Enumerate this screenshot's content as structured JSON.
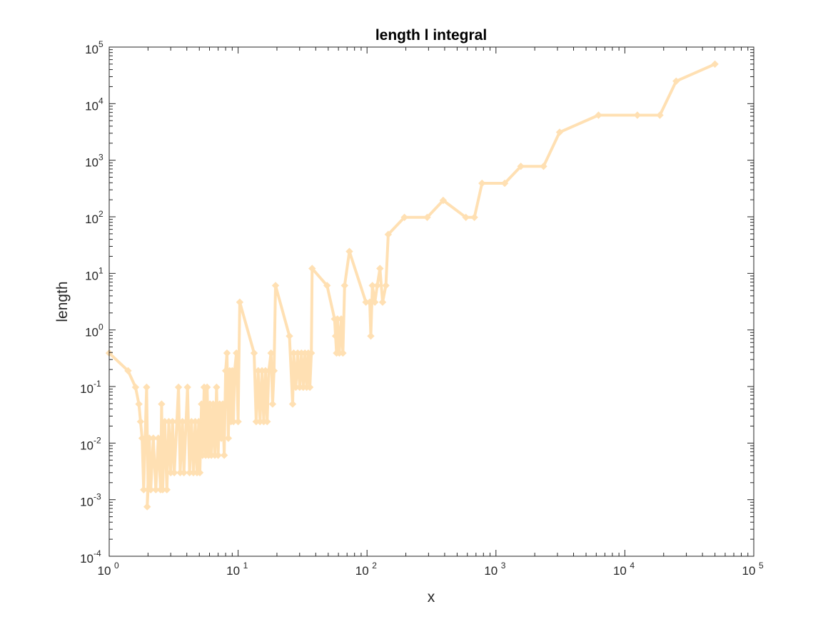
{
  "chart_data": {
    "type": "line",
    "title": "length l integral",
    "xlabel": "x",
    "ylabel": "length",
    "xscale": "log",
    "yscale": "log",
    "xlim": [
      1,
      100000
    ],
    "ylim": [
      0.0001,
      100000
    ],
    "grid": false,
    "x_ticks": [
      {
        "base": "10",
        "exp": "0"
      },
      {
        "base": "10",
        "exp": "1"
      },
      {
        "base": "10",
        "exp": "2"
      },
      {
        "base": "10",
        "exp": "3"
      },
      {
        "base": "10",
        "exp": "4"
      },
      {
        "base": "10",
        "exp": "5"
      }
    ],
    "y_ticks": [
      {
        "base": "10",
        "exp": "-4"
      },
      {
        "base": "10",
        "exp": "-3"
      },
      {
        "base": "10",
        "exp": "-2"
      },
      {
        "base": "10",
        "exp": "-1"
      },
      {
        "base": "10",
        "exp": "0"
      },
      {
        "base": "10",
        "exp": "1"
      },
      {
        "base": "10",
        "exp": "2"
      },
      {
        "base": "10",
        "exp": "3"
      },
      {
        "base": "10",
        "exp": "4"
      },
      {
        "base": "10",
        "exp": "5"
      }
    ],
    "series": [
      {
        "color": "#FFE0B3",
        "marker": "diamond",
        "points": [
          [
            1.0,
            0.39
          ],
          [
            1.4,
            0.19
          ],
          [
            1.6,
            0.097
          ],
          [
            1.7,
            0.049
          ],
          [
            1.75,
            0.024
          ],
          [
            1.8,
            0.0122
          ],
          [
            1.85,
            0.0015
          ],
          [
            1.9,
            0.0122
          ],
          [
            1.95,
            0.097
          ],
          [
            2.0,
            0.0015
          ],
          [
            1.97,
            0.00075
          ],
          [
            2.05,
            0.0122
          ],
          [
            2.1,
            0.0015
          ],
          [
            2.2,
            0.0122
          ],
          [
            2.3,
            0.0015
          ],
          [
            2.4,
            0.0122
          ],
          [
            2.5,
            0.0015
          ],
          [
            2.55,
            0.049
          ],
          [
            2.6,
            0.0015
          ],
          [
            2.7,
            0.024
          ],
          [
            2.8,
            0.0015
          ],
          [
            2.9,
            0.024
          ],
          [
            3.0,
            0.003
          ],
          [
            3.1,
            0.024
          ],
          [
            3.2,
            0.003
          ],
          [
            3.35,
            0.024
          ],
          [
            3.45,
            0.097
          ],
          [
            3.55,
            0.003
          ],
          [
            3.7,
            0.024
          ],
          [
            3.8,
            0.003
          ],
          [
            3.95,
            0.024
          ],
          [
            4.05,
            0.097
          ],
          [
            4.2,
            0.003
          ],
          [
            4.35,
            0.024
          ],
          [
            4.5,
            0.003
          ],
          [
            4.65,
            0.024
          ],
          [
            4.8,
            0.003
          ],
          [
            4.95,
            0.024
          ],
          [
            5.05,
            0.003
          ],
          [
            5.2,
            0.049
          ],
          [
            5.3,
            0.0061
          ],
          [
            5.45,
            0.097
          ],
          [
            5.6,
            0.0061
          ],
          [
            5.75,
            0.097
          ],
          [
            5.9,
            0.0061
          ],
          [
            6.05,
            0.049
          ],
          [
            6.2,
            0.0061
          ],
          [
            6.4,
            0.049
          ],
          [
            6.6,
            0.0061
          ],
          [
            6.8,
            0.097
          ],
          [
            7.0,
            0.0061
          ],
          [
            7.2,
            0.049
          ],
          [
            7.4,
            0.0122
          ],
          [
            7.6,
            0.049
          ],
          [
            7.8,
            0.0061
          ],
          [
            8.0,
            0.19
          ],
          [
            8.2,
            0.39
          ],
          [
            8.4,
            0.0122
          ],
          [
            8.6,
            0.19
          ],
          [
            8.8,
            0.024
          ],
          [
            9.0,
            0.19
          ],
          [
            9.2,
            0.024
          ],
          [
            9.4,
            0.19
          ],
          [
            9.7,
            0.39
          ],
          [
            10.0,
            0.024
          ],
          [
            10.3,
            3.1
          ],
          [
            13.3,
            0.39
          ],
          [
            13.8,
            0.024
          ],
          [
            14.3,
            0.19
          ],
          [
            14.8,
            0.024
          ],
          [
            15.3,
            0.19
          ],
          [
            15.8,
            0.024
          ],
          [
            16.3,
            0.19
          ],
          [
            16.8,
            0.024
          ],
          [
            17.3,
            0.19
          ],
          [
            18.0,
            0.39
          ],
          [
            18.5,
            0.049
          ],
          [
            19.0,
            0.19
          ],
          [
            19.5,
            6.1
          ],
          [
            25.0,
            0.78
          ],
          [
            26.5,
            0.049
          ],
          [
            27.0,
            0.39
          ],
          [
            28.0,
            0.097
          ],
          [
            29.0,
            0.39
          ],
          [
            30.0,
            0.097
          ],
          [
            31.0,
            0.39
          ],
          [
            32.0,
            0.097
          ],
          [
            33.0,
            0.39
          ],
          [
            34.0,
            0.097
          ],
          [
            35.0,
            0.39
          ],
          [
            36.0,
            0.097
          ],
          [
            37.0,
            0.39
          ],
          [
            37.5,
            12.2
          ],
          [
            49.0,
            6.1
          ],
          [
            56.0,
            1.56
          ],
          [
            57.0,
            0.78
          ],
          [
            58.0,
            0.39
          ],
          [
            59.0,
            1.56
          ],
          [
            61.0,
            0.39
          ],
          [
            63.0,
            1.56
          ],
          [
            65.0,
            0.39
          ],
          [
            67.0,
            6.1
          ],
          [
            73.0,
            24.4
          ],
          [
            98.0,
            3.1
          ],
          [
            105.0,
            3.1
          ],
          [
            107.0,
            0.78
          ],
          [
            110.0,
            6.1
          ],
          [
            115.0,
            3.1
          ],
          [
            120.0,
            6.1
          ],
          [
            126.0,
            12.2
          ],
          [
            132.0,
            3.1
          ],
          [
            140.0,
            6.1
          ],
          [
            146.0,
            48.8
          ],
          [
            195.0,
            97.7
          ],
          [
            293.0,
            97.7
          ],
          [
            390.0,
            195
          ],
          [
            585.0,
            97.7
          ],
          [
            680.0,
            97.7
          ],
          [
            780.0,
            391
          ],
          [
            1170.0,
            391
          ],
          [
            1560.0,
            781
          ],
          [
            2340.0,
            781
          ],
          [
            3120.0,
            3125
          ],
          [
            6250.0,
            6250
          ],
          [
            12500.0,
            6250
          ],
          [
            18700.0,
            6250
          ],
          [
            25000.0,
            25000
          ],
          [
            50000.0,
            50000
          ]
        ]
      }
    ]
  }
}
